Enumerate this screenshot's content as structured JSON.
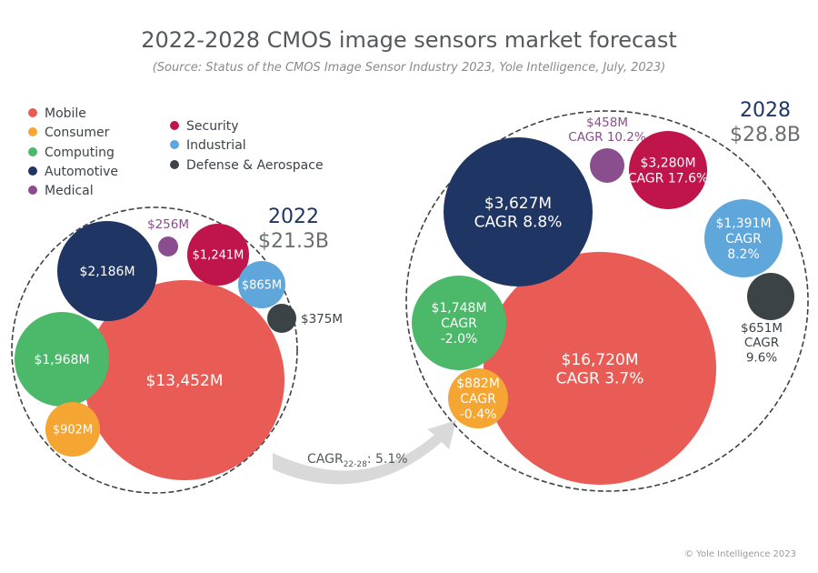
{
  "chart_data": {
    "type": "bubble",
    "title": "2022-2028 CMOS image sensors market forecast",
    "subtitle": "(Source:  Status of the CMOS Image Sensor Industry 2023, Yole Intelligence, July, 2023)",
    "legend": {
      "placement": "top-left",
      "entries": [
        {
          "name": "Mobile",
          "color": "#e95c55"
        },
        {
          "name": "Consumer",
          "color": "#f5a531"
        },
        {
          "name": "Computing",
          "color": "#4cb86a"
        },
        {
          "name": "Automotive",
          "color": "#1f3564"
        },
        {
          "name": "Medical",
          "color": "#8a4e8e"
        },
        {
          "name": "Security",
          "color": "#c0154a"
        },
        {
          "name": "Industrial",
          "color": "#5fa6db"
        },
        {
          "name": "Defense & Aerospace",
          "color": "#3c4347"
        }
      ]
    },
    "series": [
      {
        "year": "2022",
        "total": "$21.3B",
        "values_musd": {
          "Mobile": 13452,
          "Consumer": 902,
          "Computing": 1968,
          "Automotive": 2186,
          "Medical": 256,
          "Security": 1241,
          "Industrial": 865,
          "Defense & Aerospace": 375
        },
        "labels": {
          "Mobile": "$13,452M",
          "Consumer": "$902M",
          "Computing": "$1,968M",
          "Automotive": "$2,186M",
          "Medical": "$256M",
          "Security": "$1,241M",
          "Industrial": "$865M",
          "Defense & Aerospace": "$375M"
        }
      },
      {
        "year": "2028",
        "total": "$28.8B",
        "values_musd": {
          "Mobile": 16720,
          "Consumer": 882,
          "Computing": 1748,
          "Automotive": 3627,
          "Medical": 458,
          "Security": 3280,
          "Industrial": 1391,
          "Defense & Aerospace": 651
        },
        "labels": {
          "Mobile": "$16,720M",
          "Consumer": "$882M",
          "Computing": "$1,748M",
          "Automotive": "$3,627M",
          "Medical": "$458M",
          "Security": "$3,280M",
          "Industrial": "$1,391M",
          "Defense & Aerospace": "$651M"
        },
        "cagr": {
          "Mobile": "3.7%",
          "Consumer": "-0.4%",
          "Computing": "-2.0%",
          "Automotive": "8.8%",
          "Medical": "10.2%",
          "Security": "17.6%",
          "Industrial": "8.2%",
          "Defense & Aerospace": "9.6%"
        }
      }
    ],
    "cagr_label": "CAGR",
    "cagr_period": "22-28",
    "overall_cagr": ": 5.1%"
  },
  "footer": {
    "copyright": "© Yole Intelligence 2023"
  }
}
